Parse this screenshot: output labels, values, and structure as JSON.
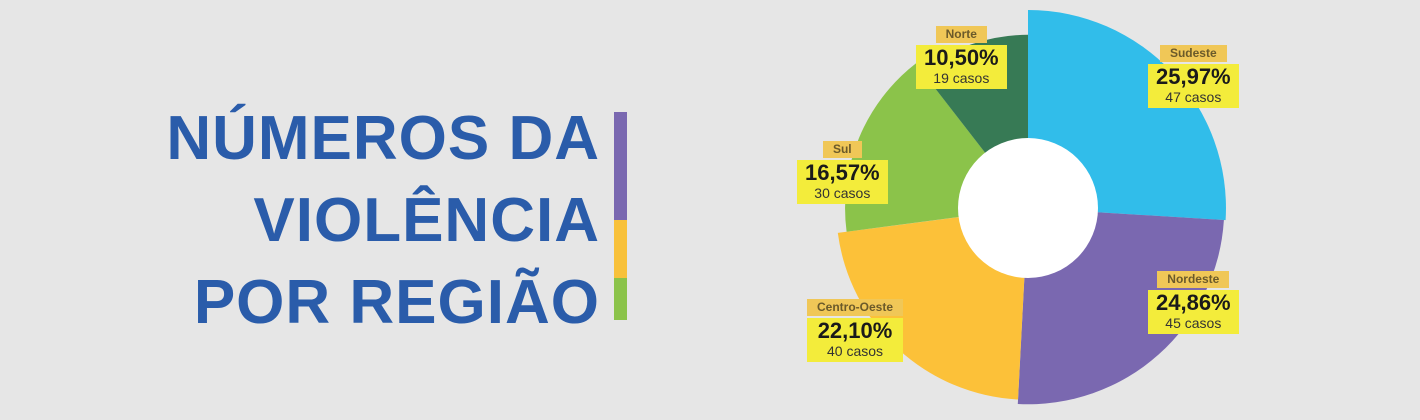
{
  "title": {
    "line1": "NÚMEROS DA",
    "line2": "VIOLÊNCIA",
    "line3": "POR REGIÃO"
  },
  "accent_colors": [
    "#7a68b0",
    "#f8c13a",
    "#8bc34a"
  ],
  "chart_data": {
    "type": "pie",
    "subtype": "radial-donut",
    "categories": [
      "Sudeste",
      "Nordeste",
      "Centro-Oeste",
      "Sul",
      "Norte"
    ],
    "values": [
      25.97,
      24.86,
      22.1,
      16.57,
      10.5
    ],
    "percent_labels": [
      "25,97%",
      "24,86%",
      "22,10%",
      "16,57%",
      "10,50%"
    ],
    "counts": [
      47,
      45,
      40,
      30,
      19
    ],
    "count_labels": [
      "47 casos",
      "45 casos",
      "40 casos",
      "30 casos",
      "19 casos"
    ],
    "colors": [
      "#31bdea",
      "#7a68b0",
      "#fcc139",
      "#8bc34a",
      "#377a55"
    ]
  }
}
